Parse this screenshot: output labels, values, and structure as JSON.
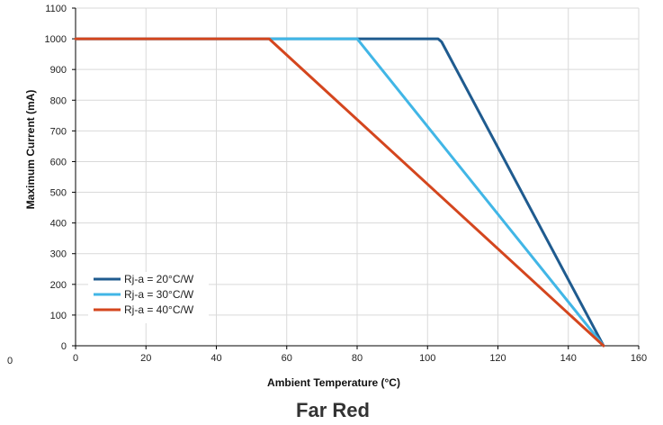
{
  "chart_data": {
    "type": "line",
    "title": "Far Red",
    "xlabel": "Ambient Temperature (°C)",
    "ylabel": "Maximum Current (mA)",
    "xlim": [
      0,
      160
    ],
    "ylim": [
      0,
      1100
    ],
    "xticks": [
      0,
      20,
      40,
      60,
      80,
      100,
      120,
      140,
      160
    ],
    "yticks": [
      0,
      100,
      200,
      300,
      400,
      500,
      600,
      700,
      800,
      900,
      1000,
      1100
    ],
    "grid": true,
    "legend_position": "bottom-left",
    "stray_label": "0",
    "series": [
      {
        "name": "Rj-a = 20°C/W",
        "color": "#1f5b8f",
        "x": [
          0,
          103,
          104,
          150
        ],
        "y": [
          1000,
          1000,
          990,
          0
        ]
      },
      {
        "name": "Rj-a = 30°C/W",
        "color": "#41b6e6",
        "x": [
          0,
          80,
          150
        ],
        "y": [
          1000,
          1000,
          0
        ]
      },
      {
        "name": "Rj-a = 40°C/W",
        "color": "#d4461e",
        "x": [
          0,
          55,
          150
        ],
        "y": [
          1000,
          1000,
          0
        ]
      }
    ]
  }
}
